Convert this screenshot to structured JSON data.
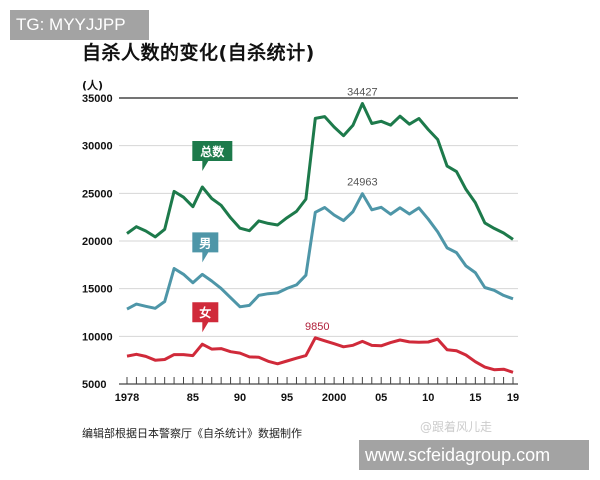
{
  "watermarks": {
    "top": "TG: MYYJJPP",
    "bottom": "www.scfeidagroup.com",
    "credit": "@跟着风儿走"
  },
  "source_note": "编辑部根据日本警察厅《自杀统计》数据制作",
  "chart_data": {
    "type": "line",
    "title": "自杀人数的变化(自杀统计)",
    "ylabel": "(人)",
    "xlabel": "",
    "ylim": [
      5000,
      35000
    ],
    "yticks": [
      5000,
      10000,
      15000,
      20000,
      25000,
      30000,
      35000
    ],
    "ytick_labels": [
      "5000",
      "10000",
      "15000",
      "20000",
      "25000",
      "30000",
      "35000"
    ],
    "xlim": [
      1978,
      2019
    ],
    "xticks": [
      1978,
      1985,
      1990,
      1995,
      2000,
      2005,
      2010,
      2015,
      2019
    ],
    "xtick_labels": [
      "1978",
      "85",
      "90",
      "95",
      "2000",
      "05",
      "10",
      "15",
      "19"
    ],
    "grid": true,
    "x": [
      1978,
      1979,
      1980,
      1981,
      1982,
      1983,
      1984,
      1985,
      1986,
      1987,
      1988,
      1989,
      1990,
      1991,
      1992,
      1993,
      1994,
      1995,
      1996,
      1997,
      1998,
      1999,
      2000,
      2001,
      2002,
      2003,
      2004,
      2005,
      2006,
      2007,
      2008,
      2009,
      2010,
      2011,
      2012,
      2013,
      2014,
      2015,
      2016,
      2017,
      2018,
      2019
    ],
    "series": [
      {
        "name": "总数",
        "color": "#1d7a4b",
        "label_year": 1986,
        "values": [
          20788,
          21503,
          21048,
          20434,
          21228,
          25202,
          24596,
          23599,
          25667,
          24460,
          23742,
          22436,
          21346,
          21084,
          22104,
          21851,
          21679,
          22445,
          23104,
          24391,
          32863,
          33048,
          31957,
          31042,
          32143,
          34427,
          32325,
          32552,
          32155,
          33093,
          32249,
          32845,
          31690,
          30651,
          27858,
          27283,
          25427,
          24025,
          21897,
          21321,
          20840,
          20169
        ],
        "annotation": {
          "year": 2003,
          "text": "34427"
        }
      },
      {
        "name": "男",
        "color": "#4e96a8",
        "label_year": 1986,
        "values": [
          12859,
          13386,
          13155,
          12942,
          13654,
          17116,
          16508,
          15624,
          16497,
          15802,
          15029,
          14049,
          13102,
          13241,
          14296,
          14468,
          14560,
          15030,
          15393,
          16416,
          23013,
          23512,
          22727,
          22144,
          23080,
          24963,
          23272,
          23540,
          22813,
          23478,
          22831,
          23472,
          22283,
          20955,
          19273,
          18787,
          17386,
          16681,
          15121,
          14826,
          14290,
          13937
        ],
        "annotation": {
          "year": 2003,
          "text": "24963"
        }
      },
      {
        "name": "女",
        "color": "#d02a3a",
        "label_year": 1986,
        "values": [
          7929,
          8117,
          7893,
          7492,
          7574,
          8086,
          8088,
          7975,
          9170,
          8658,
          8713,
          8387,
          8244,
          7843,
          7808,
          7383,
          7119,
          7415,
          7711,
          7975,
          9850,
          9536,
          9230,
          8898,
          9063,
          9464,
          9053,
          9012,
          9342,
          9615,
          9418,
          9373,
          9407,
          9696,
          8585,
          8496,
          8041,
          7344,
          6776,
          6495,
          6550,
          6232
        ],
        "annotation": {
          "year": 1998,
          "text": "9850"
        }
      }
    ]
  }
}
